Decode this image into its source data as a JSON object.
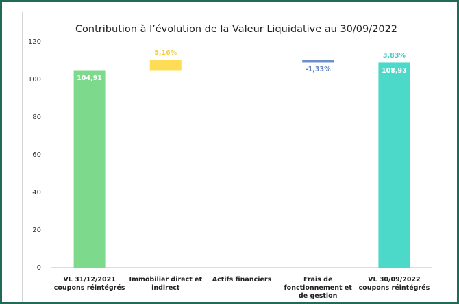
{
  "chart_data": {
    "type": "waterfall",
    "title": "Contribution à l’évolution de la Valeur Liquidative au 30/09/2022",
    "categories": [
      "VL 31/12/2021 coupons réintégrés",
      "Immobilier direct et indirect",
      "Actifs financiers",
      "Frais de fonctionnement et de gestion",
      "VL 30/09/2022 coupons réintégrés"
    ],
    "values": [
      104.91,
      5.41,
      0,
      -1.4,
      108.93
    ],
    "value_labels": [
      "104,91",
      null,
      null,
      null,
      "108,93"
    ],
    "totals": [
      true,
      false,
      false,
      false,
      true
    ],
    "contributions": [
      null,
      5.16,
      null,
      -1.33,
      3.83
    ],
    "contribution_labels": [
      null,
      "5,16%",
      null,
      "-1,33%",
      "3,83%"
    ],
    "colors": [
      "#7dd98b",
      "#ffdc55",
      "#9aa0a6",
      "#6f8fcb",
      "#4cd9c9"
    ],
    "label_colors": [
      null,
      "#f7cf3c",
      null,
      "#5f82c2",
      "#3fcfbf"
    ],
    "ylim": [
      0,
      120
    ],
    "yticks": [
      0,
      20,
      40,
      60,
      80,
      100,
      120
    ],
    "grid": false
  }
}
